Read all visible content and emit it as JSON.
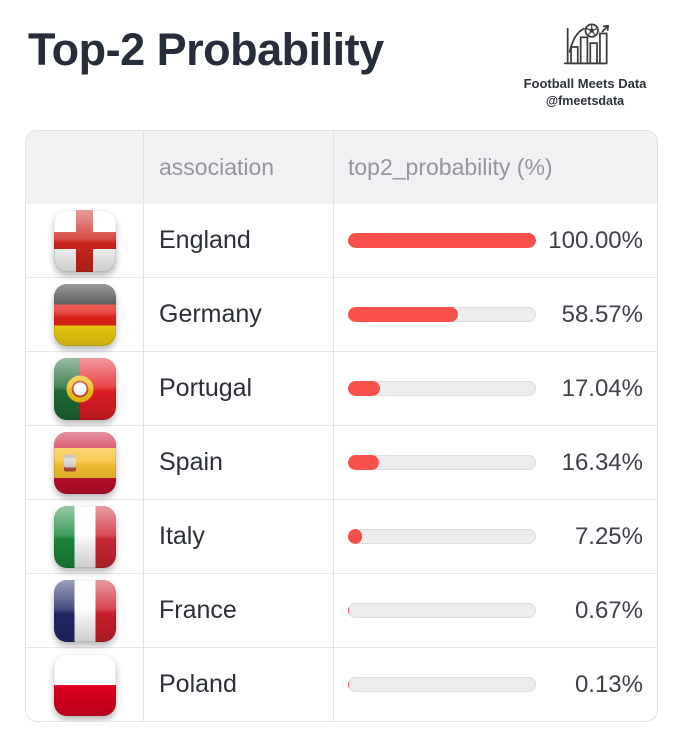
{
  "header": {
    "title": "Top-2 Probability",
    "logo": {
      "icon": "football-bar-chart-icon",
      "line1": "Football Meets Data",
      "line2": "@fmeetsdata"
    }
  },
  "table": {
    "columns": {
      "flag": "",
      "association": "association",
      "probability": "top2_probability (%)"
    },
    "rows": [
      {
        "flag": "england",
        "association": "England",
        "probability": 100.0,
        "probability_label": "100.00%"
      },
      {
        "flag": "germany",
        "association": "Germany",
        "probability": 58.57,
        "probability_label": "58.57%"
      },
      {
        "flag": "portugal",
        "association": "Portugal",
        "probability": 17.04,
        "probability_label": "17.04%"
      },
      {
        "flag": "spain",
        "association": "Spain",
        "probability": 16.34,
        "probability_label": "16.34%"
      },
      {
        "flag": "italy",
        "association": "Italy",
        "probability": 7.25,
        "probability_label": "7.25%"
      },
      {
        "flag": "france",
        "association": "France",
        "probability": 0.67,
        "probability_label": "0.67%"
      },
      {
        "flag": "poland",
        "association": "Poland",
        "probability": 0.13,
        "probability_label": "0.13%"
      }
    ]
  },
  "colors": {
    "title_text": "#272d3a",
    "bar_fill": "#f8504a",
    "bar_track": "#ededef",
    "header_bg": "#f1f1f3",
    "header_text": "#94959e",
    "border": "#e2e2e6"
  },
  "chart_data": {
    "type": "bar",
    "orientation": "horizontal",
    "title": "Top-2 Probability",
    "categories": [
      "England",
      "Germany",
      "Portugal",
      "Spain",
      "Italy",
      "France",
      "Poland"
    ],
    "values": [
      100.0,
      58.57,
      17.04,
      16.34,
      7.25,
      0.67,
      0.13
    ],
    "xlabel": "top2_probability (%)",
    "ylabel": "association",
    "xlim": [
      0,
      100
    ],
    "grid": false,
    "legend": false,
    "source": "Football Meets Data @fmeetsdata"
  }
}
